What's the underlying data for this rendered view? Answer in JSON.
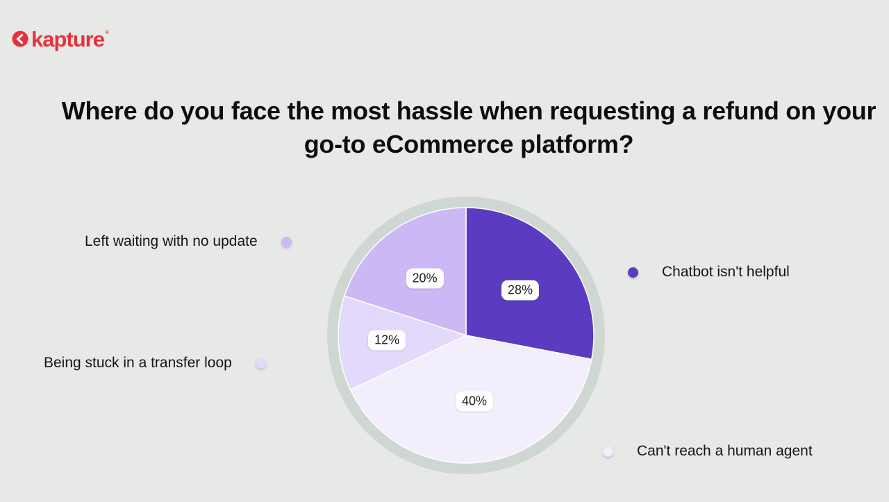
{
  "brand": {
    "name": "kapture",
    "reg_mark": "®",
    "color": "#e8303d"
  },
  "chart_data": {
    "type": "pie",
    "title": "Where do you face the most hassle when requesting a refund on your go-to eCommerce platform?",
    "slices": [
      {
        "label": "Chatbot isn't helpful",
        "value": 28,
        "display": "28%",
        "color": "#5b3cc0"
      },
      {
        "label": "Can't reach a human agent",
        "value": 40,
        "display": "40%",
        "color": "#f2eefc"
      },
      {
        "label": "Being stuck in a transfer loop",
        "value": 12,
        "display": "12%",
        "color": "#e3d9fa"
      },
      {
        "label": "Left waiting with no update",
        "value": 20,
        "display": "20%",
        "color": "#cdb8f6"
      }
    ],
    "legend_placement": "around-pie"
  },
  "colors": {
    "background": "#e7e9e7",
    "pie_ring": "#cfd7d2"
  }
}
